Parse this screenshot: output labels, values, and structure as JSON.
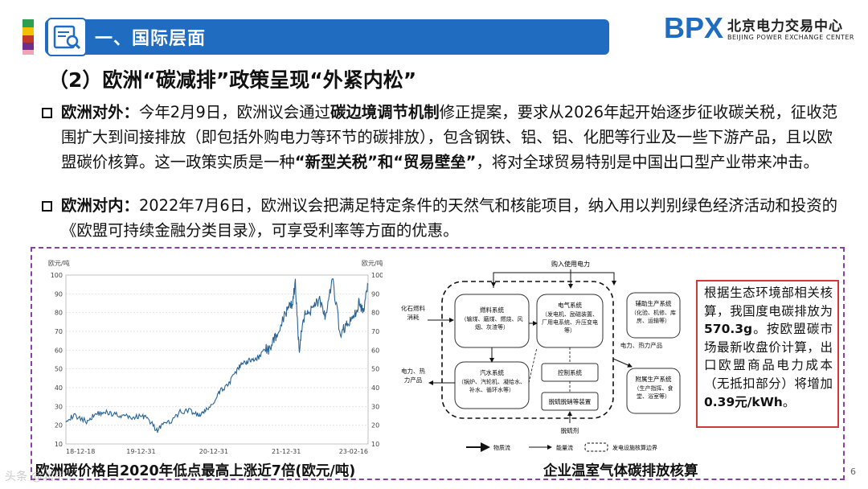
{
  "header": {
    "title": "一、国际层面",
    "logo_mark": "BPX",
    "logo_cn": "北京电力交易中心",
    "logo_en": "BEIJING POWER EXCHANGE CENTER",
    "accent_color": "#1f6cc1",
    "strip_colors": [
      "#2e9e4f",
      "#f2c200",
      "#c0392b",
      "#6d2e8c",
      "#f4a3b7"
    ]
  },
  "subtitle": "（2）欧洲“碳减排”政策呈现“外紧内松”",
  "para1": {
    "label": "欧洲对外：",
    "t1": "今年2月9日，欧洲议会通过",
    "b1": "碳边境调节机制",
    "t2": "修正提案，要求从2026年起开始逐步征收碳关税，征收范围扩大到间接排放（即包括外购电力等环节的碳排放），包含钢铁、铝、铝、化肥等行业及一些下游产品，且以欧盟碳价核算。这一政策实质是一种",
    "b2": "“新型关税”和“贸易壁垒”",
    "t3": "，将对全球贸易特别是中国出口型产业带来冲击。"
  },
  "para2": {
    "label": "欧洲对内：",
    "text": "2022年7月6日，欧洲议会把满足特定条件的天然气和核能项目，纳入用以判别绿色经济活动和投资的《欧盟可持续金融分类目录》，可享受利率等方面的优惠。"
  },
  "chart_data": {
    "type": "line",
    "unit_left": "欧元/吨",
    "unit_right": "欧元/吨",
    "x_ticks": [
      "18-12-18",
      "19-12-31",
      "20-12-31",
      "21-12-31",
      "23-02-16"
    ],
    "y_ticks": [
      10,
      20,
      30,
      40,
      50,
      60,
      70,
      80,
      90,
      100
    ],
    "ylim": [
      10,
      100
    ],
    "grid": true,
    "line_color": "#2a6496",
    "series": [
      {
        "x": [
          "2018-12-18",
          "2019-02-01",
          "2019-04-01",
          "2019-05-15",
          "2019-07-01",
          "2019-08-15",
          "2019-10-01",
          "2019-11-15",
          "2019-12-31",
          "2020-02-01",
          "2020-03-20",
          "2020-04-15",
          "2020-06-01",
          "2020-07-15",
          "2020-09-01",
          "2020-10-15",
          "2020-11-15",
          "2020-12-31",
          "2021-02-01",
          "2021-03-15",
          "2021-04-15",
          "2021-05-15",
          "2021-06-15",
          "2021-07-15",
          "2021-08-15",
          "2021-09-15",
          "2021-10-15",
          "2021-11-15",
          "2021-12-31",
          "2022-01-31",
          "2022-02-15",
          "2022-03-07",
          "2022-03-25",
          "2022-04-20",
          "2022-05-20",
          "2022-06-20",
          "2022-07-20",
          "2022-08-20",
          "2022-09-30",
          "2022-10-31",
          "2022-11-30",
          "2022-12-31",
          "2023-01-20",
          "2023-02-16"
        ],
        "y": [
          23,
          25,
          22,
          26,
          27,
          26,
          25,
          24,
          25,
          24,
          17,
          20,
          22,
          27,
          28,
          25,
          27,
          32,
          38,
          42,
          47,
          52,
          54,
          55,
          56,
          61,
          60,
          70,
          80,
          85,
          95,
          58,
          77,
          80,
          85,
          86,
          77,
          98,
          68,
          74,
          76,
          85,
          80,
          95
        ]
      }
    ]
  },
  "diagram": {
    "top_label": "购入使用电力",
    "left_input": "化石燃料消耗",
    "left_output": "电力、热力产品",
    "mid_output": "电力、热力产品",
    "bottom_input": "脱硫剂",
    "boxes": {
      "fuel": {
        "title": "燃料系统",
        "desc": "（输煤、磨煤、燃烧、风烟、灰渣等）"
      },
      "electric": {
        "title": "电气系统",
        "desc": "（发电机、励磁装置、厂用电系统、升压变电等）"
      },
      "steam": {
        "title": "汽水系统",
        "desc": "（锅炉、汽轮机、凝给水、补水、循环水等）"
      },
      "control": {
        "title": "控制系统"
      },
      "desulfur": {
        "title": "脱硫脱硝等装置"
      },
      "aux": {
        "title": "辅助生产系统",
        "desc": "（化验、机修、库房、运输等）"
      },
      "affiliated": {
        "title": "附属生产系统",
        "desc": "（生产指挥、食堂、浴室等）"
      }
    },
    "legend": {
      "material": "物质流",
      "energy": "能量流",
      "boundary": "发电设施核算边界"
    }
  },
  "note": {
    "t1": "根据生态环境部相关核算，我国度电碳排放为",
    "b1": "570.3g",
    "t2": "。按欧盟碳市场最新收盘价计算，出口欧盟商品电力成本（无抵扣部分）将增加",
    "b2": "0.39元/kWh",
    "t3": "。"
  },
  "captions": {
    "left": "欧洲碳价格自2020年低点最高上涨近7倍(欧元/吨)",
    "right": "企业温室气体碳排放核算"
  },
  "page_number": "6",
  "watermark": "头条 @北京..."
}
